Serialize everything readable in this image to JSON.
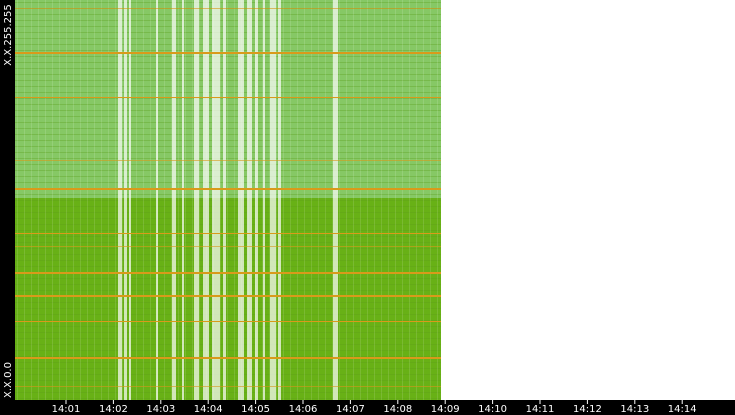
{
  "y_axis": {
    "top_label": "X.X.255.255",
    "bottom_label": "X.X.0.0"
  },
  "x_axis": {
    "ticks": [
      "14:01",
      "14:02",
      "14:03",
      "14:04",
      "14:05",
      "14:06",
      "14:07",
      "14:08",
      "14:09",
      "14:10",
      "14:11",
      "14:12",
      "14:13",
      "14:14"
    ]
  }
}
